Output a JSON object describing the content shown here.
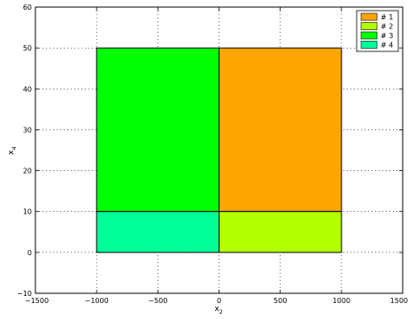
{
  "chart_data": {
    "type": "area",
    "xlabel": "x",
    "xlabel_sub": "2",
    "ylabel": "x",
    "ylabel_sub": "4",
    "xlim": [
      -1500,
      1500
    ],
    "ylim": [
      -10,
      60
    ],
    "x_ticks": [
      -1500,
      -1000,
      -500,
      0,
      500,
      1000,
      1500
    ],
    "x_tick_labels": [
      "−1500",
      "−1000",
      "−500",
      "0",
      "500",
      "1000",
      "1500"
    ],
    "y_ticks": [
      -10,
      0,
      10,
      20,
      30,
      40,
      50,
      60
    ],
    "y_tick_labels": [
      "−10",
      "0",
      "10",
      "20",
      "30",
      "40",
      "50",
      "60"
    ],
    "grid": true,
    "legend_position": "top-right",
    "series": [
      {
        "name": "# 1",
        "color": "#ffa500",
        "x": [
          0,
          1000
        ],
        "y": [
          10,
          50
        ]
      },
      {
        "name": "# 2",
        "color": "#b2ff00",
        "x": [
          0,
          1000
        ],
        "y": [
          0,
          10
        ]
      },
      {
        "name": "# 3",
        "color": "#00ff00",
        "x": [
          -1000,
          0
        ],
        "y": [
          10,
          50
        ]
      },
      {
        "name": "# 4",
        "color": "#00ff99",
        "x": [
          -1000,
          0
        ],
        "y": [
          0,
          10
        ]
      }
    ]
  }
}
